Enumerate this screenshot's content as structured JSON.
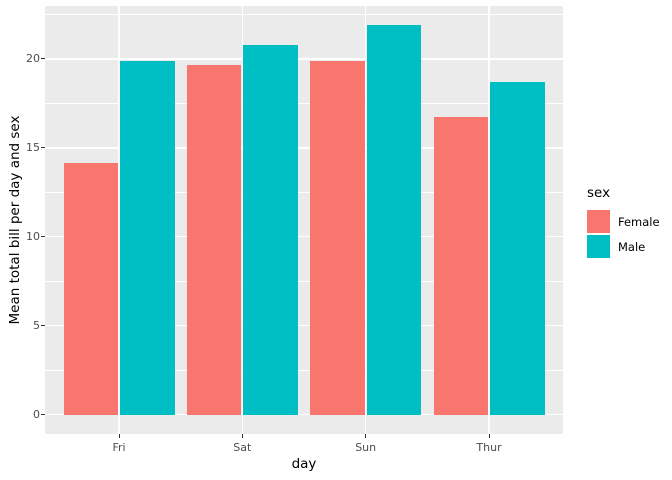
{
  "chart_data": {
    "type": "bar",
    "title": "",
    "xlabel": "day",
    "ylabel": "Mean total bill per day and sex",
    "categories": [
      "Fri",
      "Sat",
      "Sun",
      "Thur"
    ],
    "series": [
      {
        "name": "Female",
        "color": "#F8766D",
        "values": [
          14.15,
          19.68,
          19.87,
          16.72
        ]
      },
      {
        "name": "Male",
        "color": "#00BFC4",
        "values": [
          19.86,
          20.8,
          21.89,
          18.71
        ]
      }
    ],
    "ylim": [
      -1.09,
      22.98
    ],
    "yticks": [
      0,
      5,
      10,
      15,
      20
    ],
    "ytick_labels": [
      "0",
      "5",
      "10",
      "15",
      "20"
    ],
    "yticks_minor": [
      2.5,
      7.5,
      12.5,
      17.5,
      22.5
    ],
    "grid": true,
    "legend": {
      "title": "sex",
      "position": "right"
    },
    "colors": {
      "panel_background": "#EBEBEB",
      "gridline": "#FFFFFF",
      "axis_tick": "#333333",
      "tick_label": "#4D4D4D",
      "axis_title": "#000000"
    }
  }
}
